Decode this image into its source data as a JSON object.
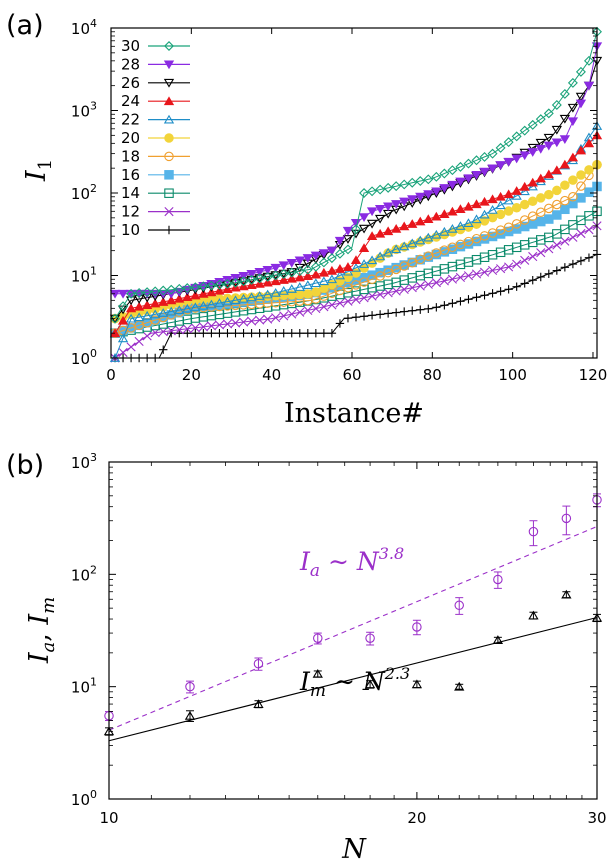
{
  "figure": {
    "panel_a_tag": "(a)",
    "panel_b_tag": "(b)"
  },
  "chart_data": [
    {
      "type": "line",
      "panel": "(a)",
      "xlabel": "Instance#",
      "ylabel": "I₁",
      "ylabel_main": "I",
      "ylabel_sub": "1",
      "xlim": [
        0,
        121
      ],
      "ylim": [
        1,
        10000
      ],
      "yscale": "log",
      "x_ticks": [
        "0",
        "20",
        "40",
        "60",
        "80",
        "100",
        "120"
      ],
      "y_ticks": [
        {
          "base": "10",
          "exp": "0"
        },
        {
          "base": "10",
          "exp": "1"
        },
        {
          "base": "10",
          "exp": "2"
        },
        {
          "base": "10",
          "exp": "3"
        },
        {
          "base": "10",
          "exp": "4"
        }
      ],
      "legend_position": "top-left",
      "series": [
        {
          "name": "30",
          "color": "#1aa37a",
          "marker": "diamond-open",
          "anchors": [
            [
              1,
              3
            ],
            [
              5,
              6
            ],
            [
              30,
              8
            ],
            [
              50,
              12
            ],
            [
              60,
              22
            ],
            [
              63,
              100
            ],
            [
              80,
              150
            ],
            [
              95,
              300
            ],
            [
              110,
              1000
            ],
            [
              119,
              4000
            ],
            [
              121,
              9000
            ]
          ]
        },
        {
          "name": "28",
          "color": "#8a2be2",
          "marker": "triangle-down-filled",
          "anchors": [
            [
              1,
              6
            ],
            [
              15,
              6
            ],
            [
              40,
              12
            ],
            [
              55,
              20
            ],
            [
              60,
              40
            ],
            [
              65,
              60
            ],
            [
              80,
              100
            ],
            [
              100,
              250
            ],
            [
              113,
              450
            ],
            [
              119,
              2000
            ],
            [
              121,
              6000
            ]
          ]
        },
        {
          "name": "26",
          "color": "#000000",
          "marker": "triangle-down-open",
          "anchors": [
            [
              1,
              3
            ],
            [
              5,
              5
            ],
            [
              30,
              8
            ],
            [
              45,
              11
            ],
            [
              55,
              20
            ],
            [
              60,
              30
            ],
            [
              70,
              60
            ],
            [
              85,
              120
            ],
            [
              100,
              250
            ],
            [
              110,
              500
            ],
            [
              119,
              2000
            ],
            [
              121,
              4000
            ]
          ]
        },
        {
          "name": "24",
          "color": "#e8161c",
          "marker": "triangle-filled",
          "anchors": [
            [
              1,
              2
            ],
            [
              5,
              4
            ],
            [
              30,
              7
            ],
            [
              50,
              10
            ],
            [
              60,
              13
            ],
            [
              65,
              30
            ],
            [
              80,
              50
            ],
            [
              100,
              100
            ],
            [
              112,
              200
            ],
            [
              119,
              400
            ],
            [
              121,
              500
            ]
          ]
        },
        {
          "name": "22",
          "color": "#1f8ec8",
          "marker": "triangle-open",
          "anchors": [
            [
              1,
              1
            ],
            [
              5,
              3
            ],
            [
              40,
              6
            ],
            [
              55,
              9
            ],
            [
              70,
              20
            ],
            [
              90,
              45
            ],
            [
              105,
              120
            ],
            [
              115,
              250
            ],
            [
              121,
              650
            ]
          ]
        },
        {
          "name": "20",
          "color": "#f2d43a",
          "marker": "circle-filled",
          "anchors": [
            [
              1,
              3
            ],
            [
              20,
              5
            ],
            [
              50,
              6
            ],
            [
              60,
              10
            ],
            [
              70,
              20
            ],
            [
              90,
              40
            ],
            [
              110,
              100
            ],
            [
              121,
              220
            ]
          ]
        },
        {
          "name": "18",
          "color": "#f0a030",
          "marker": "circle-open",
          "anchors": [
            [
              1,
              2
            ],
            [
              20,
              4
            ],
            [
              50,
              5
            ],
            [
              65,
              9
            ],
            [
              80,
              18
            ],
            [
              100,
              40
            ],
            [
              115,
              90
            ],
            [
              121,
              220
            ]
          ]
        },
        {
          "name": "16",
          "color": "#56b4e9",
          "marker": "square-filled",
          "anchors": [
            [
              1,
              2
            ],
            [
              20,
              4
            ],
            [
              50,
              6
            ],
            [
              70,
              12
            ],
            [
              90,
              25
            ],
            [
              110,
              50
            ],
            [
              121,
              120
            ]
          ]
        },
        {
          "name": "14",
          "color": "#0a8a6a",
          "marker": "square-open",
          "anchors": [
            [
              1,
              2
            ],
            [
              20,
              3
            ],
            [
              50,
              5
            ],
            [
              70,
              8
            ],
            [
              90,
              15
            ],
            [
              110,
              30
            ],
            [
              121,
              60
            ]
          ]
        },
        {
          "name": "12",
          "color": "#9b30c9",
          "marker": "cross",
          "anchors": [
            [
              1,
              1
            ],
            [
              10,
              2
            ],
            [
              40,
              3
            ],
            [
              60,
              5
            ],
            [
              80,
              8
            ],
            [
              100,
              13
            ],
            [
              121,
              40
            ]
          ]
        },
        {
          "name": "10",
          "color": "#000000",
          "marker": "plus",
          "anchors": [
            [
              1,
              1
            ],
            [
              12,
              1
            ],
            [
              15,
              2
            ],
            [
              55,
              2
            ],
            [
              58,
              3
            ],
            [
              80,
              4
            ],
            [
              100,
              7
            ],
            [
              121,
              18
            ]
          ]
        }
      ]
    },
    {
      "type": "scatter",
      "panel": "(b)",
      "xlabel": "N",
      "ylabel": "I_a, I_m",
      "xlim": [
        10,
        30
      ],
      "ylim": [
        1,
        1000
      ],
      "xscale": "log",
      "yscale": "log",
      "x_ticks": [
        10,
        20,
        30
      ],
      "y_ticks": [
        {
          "base": "10",
          "exp": "0"
        },
        {
          "base": "10",
          "exp": "1"
        },
        {
          "base": "10",
          "exp": "2"
        },
        {
          "base": "10",
          "exp": "3"
        }
      ],
      "series": [
        {
          "name": "I_a",
          "color": "#9b30c9",
          "marker": "circle-open",
          "x": [
            10,
            12,
            14,
            16,
            18,
            20,
            22,
            24,
            26,
            28,
            30
          ],
          "y": [
            5.5,
            10,
            16,
            27,
            27,
            34,
            53,
            90,
            240,
            315,
            460
          ],
          "err": [
            0.5,
            1.2,
            2,
            3,
            3.5,
            5,
            9,
            15,
            60,
            90,
            60
          ]
        },
        {
          "name": "I_m",
          "color": "#000000",
          "marker": "triangle-open",
          "x": [
            10,
            12,
            14,
            16,
            18,
            20,
            22,
            24,
            26,
            28,
            30
          ],
          "y": [
            4,
            5.5,
            7,
            13,
            10.5,
            10.5,
            10,
            26,
            43,
            66,
            41
          ],
          "err": [
            0.3,
            0.6,
            0.5,
            0.8,
            0.8,
            0.7,
            0.5,
            1.5,
            3,
            4,
            3
          ]
        }
      ],
      "fits": [
        {
          "label_main": "I",
          "label_sub": "a",
          "label_rel": " ∼ N",
          "label_exp": "3.8",
          "exponent": 3.8,
          "y_at_10": 4.1,
          "color": "#9b30c9",
          "dashed": true
        },
        {
          "label_main": "I",
          "label_sub": "m",
          "label_rel": " ∼ N",
          "label_exp": "2.3",
          "exponent": 2.3,
          "y_at_10": 3.3,
          "color": "#000000",
          "dashed": false
        }
      ]
    }
  ]
}
